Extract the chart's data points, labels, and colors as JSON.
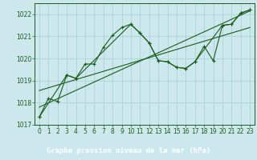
{
  "bg_color": "#cce8ec",
  "plot_bg_color": "#cce8ec",
  "label_bg_color": "#2d6e2d",
  "label_text_color": "#ffffff",
  "line_color": "#1a5c1a",
  "marker_color": "#1a5c1a",
  "title": "Graphe pression niveau de la mer (hPa)",
  "ylim": [
    1017,
    1022.5
  ],
  "yticks": [
    1017,
    1018,
    1019,
    1020,
    1021,
    1022
  ],
  "xlim": [
    -0.5,
    23.5
  ],
  "xticks": [
    0,
    1,
    2,
    3,
    4,
    5,
    6,
    7,
    8,
    9,
    10,
    11,
    12,
    13,
    14,
    15,
    16,
    17,
    18,
    19,
    20,
    21,
    22,
    23
  ],
  "series1_x": [
    0,
    1,
    2,
    3,
    4,
    5,
    6,
    7,
    8,
    9,
    10,
    11,
    12,
    13,
    14,
    15,
    16,
    17,
    18,
    19,
    20,
    21,
    22,
    23
  ],
  "series1_y": [
    1017.35,
    1018.2,
    1018.05,
    1019.25,
    1019.1,
    1019.75,
    1019.75,
    1020.5,
    1021.05,
    1021.4,
    1021.55,
    1021.15,
    1020.7,
    1019.9,
    1019.85,
    1019.6,
    1019.55,
    1019.85,
    1020.55,
    1019.9,
    1021.5,
    1021.55,
    1022.05,
    1022.2
  ],
  "series2_x": [
    0,
    3,
    4,
    10,
    11,
    12,
    13,
    14,
    15,
    16,
    17,
    20,
    21,
    22,
    23
  ],
  "series2_y": [
    1017.35,
    1019.25,
    1019.1,
    1021.55,
    1021.15,
    1020.7,
    1019.9,
    1019.85,
    1019.6,
    1019.55,
    1019.85,
    1021.5,
    1021.55,
    1022.05,
    1022.2
  ],
  "trend1_x": [
    0,
    23
  ],
  "trend1_y": [
    1017.8,
    1022.15
  ],
  "trend2_x": [
    0,
    23
  ],
  "trend2_y": [
    1018.55,
    1021.4
  ],
  "grid_color": "#aad4d8",
  "tick_fontsize": 5.5,
  "label_fontsize": 6.5
}
